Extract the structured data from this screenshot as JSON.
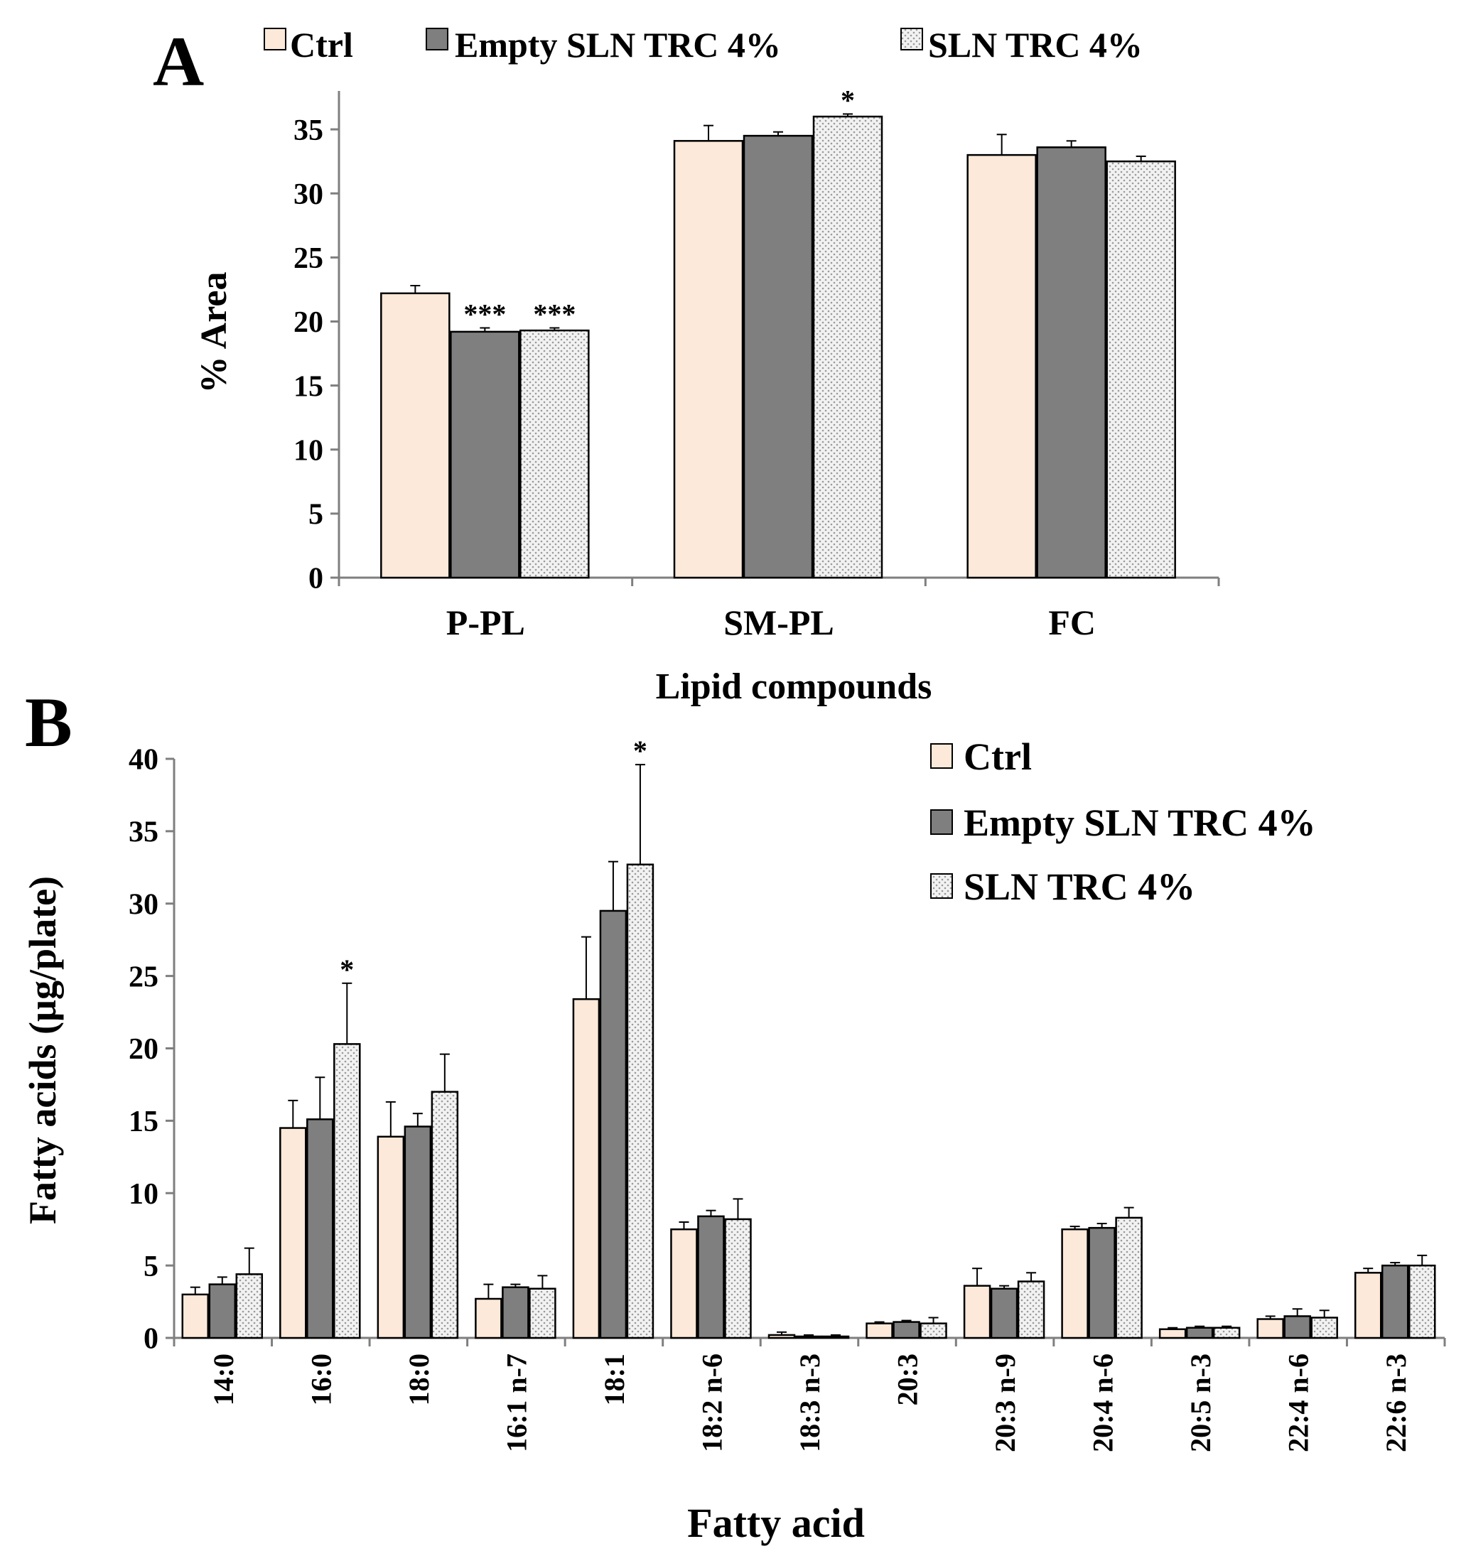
{
  "legend_labels": [
    "Ctrl",
    "Empty SLN TRC 4%",
    "SLN TRC 4%"
  ],
  "series_colors": {
    "ctrl": "#fde9d9",
    "empty": "#7f7f7f",
    "sln": "#f2f2f2",
    "axis": "#7f7f7f",
    "outline": "#000000"
  },
  "chart_data": [
    {
      "type": "bar",
      "panel_label": "A",
      "title": "",
      "xlabel": "Lipid compounds",
      "ylabel": "% Area",
      "ylim": [
        0,
        38
      ],
      "yticks": [
        0,
        5,
        10,
        15,
        20,
        25,
        30,
        35
      ],
      "yticks_label": [
        "0",
        "5",
        "10",
        "15",
        "20",
        "25",
        "30",
        "35"
      ],
      "legend": "top",
      "categories": [
        "P-PL",
        "SM-PL",
        "FC"
      ],
      "series": [
        {
          "name": "Ctrl",
          "values": [
            22.2,
            34.1,
            33.0
          ],
          "errors": [
            0.6,
            1.2,
            1.6
          ]
        },
        {
          "name": "Empty SLN TRC 4%",
          "values": [
            19.2,
            34.5,
            33.6
          ],
          "errors": [
            0.3,
            0.3,
            0.5
          ]
        },
        {
          "name": "SLN TRC 4%",
          "values": [
            19.3,
            36.0,
            32.5
          ],
          "errors": [
            0.2,
            0.2,
            0.4
          ]
        }
      ],
      "annotations": [
        {
          "category": 0,
          "series": 1,
          "text": "***"
        },
        {
          "category": 0,
          "series": 2,
          "text": "***"
        },
        {
          "category": 1,
          "series": 2,
          "text": "*"
        }
      ]
    },
    {
      "type": "bar",
      "panel_label": "B",
      "title": "",
      "xlabel": "Fatty acid",
      "ylabel": "Fatty acids (µg/plate)",
      "ylim": [
        0,
        40
      ],
      "yticks": [
        0,
        5,
        10,
        15,
        20,
        25,
        30,
        35,
        40
      ],
      "yticks_label": [
        "0",
        "5",
        "10",
        "15",
        "20",
        "25",
        "30",
        "35",
        "40"
      ],
      "legend": "top-right",
      "categories": [
        "14:0",
        "16:0",
        "18:0",
        "16:1 n-7",
        "18:1",
        "18:2 n-6",
        "18:3 n-3",
        "20:3",
        "20:3 n-9",
        "20:4 n-6",
        "20:5 n-3",
        "22:4 n-6",
        "22:6 n-3"
      ],
      "series": [
        {
          "name": "Ctrl",
          "values": [
            3.0,
            14.5,
            13.9,
            2.7,
            23.4,
            7.5,
            0.2,
            1.0,
            3.6,
            7.5,
            0.6,
            1.3,
            4.5
          ],
          "errors": [
            0.5,
            1.9,
            2.4,
            1.0,
            4.3,
            0.5,
            0.2,
            0.1,
            1.2,
            0.2,
            0.1,
            0.2,
            0.3
          ]
        },
        {
          "name": "Empty SLN TRC 4%",
          "values": [
            3.7,
            15.1,
            14.6,
            3.5,
            29.5,
            8.4,
            0.1,
            1.1,
            3.4,
            7.6,
            0.7,
            1.5,
            5.0
          ],
          "errors": [
            0.5,
            2.9,
            0.9,
            0.2,
            3.4,
            0.4,
            0.1,
            0.1,
            0.2,
            0.3,
            0.1,
            0.5,
            0.2
          ]
        },
        {
          "name": "SLN TRC 4%",
          "values": [
            4.4,
            20.3,
            17.0,
            3.4,
            32.7,
            8.2,
            0.1,
            1.0,
            3.9,
            8.3,
            0.7,
            1.4,
            5.0
          ],
          "errors": [
            1.8,
            4.2,
            2.6,
            0.9,
            6.9,
            1.4,
            0.1,
            0.4,
            0.6,
            0.7,
            0.1,
            0.5,
            0.7
          ]
        }
      ],
      "annotations": [
        {
          "category": 1,
          "series": 2,
          "text": "*"
        },
        {
          "category": 4,
          "series": 2,
          "text": "*"
        }
      ]
    }
  ]
}
